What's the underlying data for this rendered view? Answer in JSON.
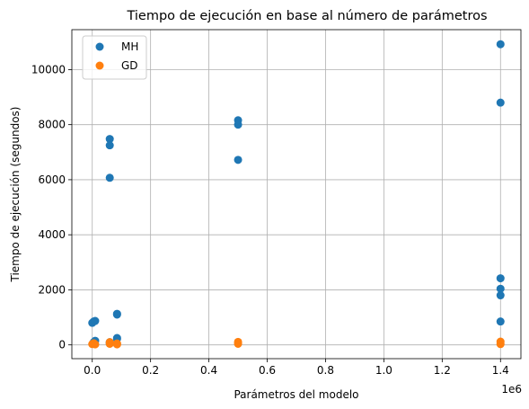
{
  "chart_data": {
    "type": "scatter",
    "title": "Tiempo de ejecución en base al número de parámetros",
    "xlabel": "Parámetros del modelo",
    "ylabel": "Tiempo de ejecución (segundos)",
    "x_offset_label": "1e6",
    "xlim": [
      -0.07,
      1.47
    ],
    "ylim": [
      -500,
      11450
    ],
    "x_ticks": [
      0.0,
      0.2,
      0.4,
      0.6,
      0.8,
      1.0,
      1.2,
      1.4
    ],
    "x_tick_labels": [
      "0.0",
      "0.2",
      "0.4",
      "0.6",
      "0.8",
      "1.0",
      "1.2",
      "1.4"
    ],
    "y_ticks": [
      0,
      2000,
      4000,
      6000,
      8000,
      10000
    ],
    "y_tick_labels": [
      "0",
      "2000",
      "4000",
      "6000",
      "8000",
      "10000"
    ],
    "grid": true,
    "legend_position": "top-left",
    "series": [
      {
        "name": "MH",
        "color": "#1f77b4",
        "points": [
          {
            "x": 0.0,
            "y": 800
          },
          {
            "x": 0.005,
            "y": 850
          },
          {
            "x": 0.01,
            "y": 870
          },
          {
            "x": 0.01,
            "y": 150
          },
          {
            "x": 0.005,
            "y": 100
          },
          {
            "x": 0.06,
            "y": 7480
          },
          {
            "x": 0.06,
            "y": 7250
          },
          {
            "x": 0.06,
            "y": 6070
          },
          {
            "x": 0.06,
            "y": 100
          },
          {
            "x": 0.06,
            "y": 50
          },
          {
            "x": 0.085,
            "y": 1130
          },
          {
            "x": 0.085,
            "y": 1100
          },
          {
            "x": 0.085,
            "y": 250
          },
          {
            "x": 0.085,
            "y": 220
          },
          {
            "x": 0.5,
            "y": 8160
          },
          {
            "x": 0.5,
            "y": 8000
          },
          {
            "x": 0.5,
            "y": 6720
          },
          {
            "x": 1.4,
            "y": 10920
          },
          {
            "x": 1.4,
            "y": 8800
          },
          {
            "x": 1.4,
            "y": 2420
          },
          {
            "x": 1.4,
            "y": 2040
          },
          {
            "x": 1.4,
            "y": 1800
          },
          {
            "x": 1.4,
            "y": 850
          }
        ]
      },
      {
        "name": "GD",
        "color": "#ff7f0e",
        "points": [
          {
            "x": 0.0,
            "y": 30
          },
          {
            "x": 0.005,
            "y": 60
          },
          {
            "x": 0.01,
            "y": 20
          },
          {
            "x": 0.06,
            "y": 100
          },
          {
            "x": 0.06,
            "y": 40
          },
          {
            "x": 0.085,
            "y": 20
          },
          {
            "x": 0.085,
            "y": 50
          },
          {
            "x": 0.5,
            "y": 110
          },
          {
            "x": 0.5,
            "y": 40
          },
          {
            "x": 1.4,
            "y": 120
          },
          {
            "x": 1.4,
            "y": 30
          }
        ]
      }
    ]
  }
}
